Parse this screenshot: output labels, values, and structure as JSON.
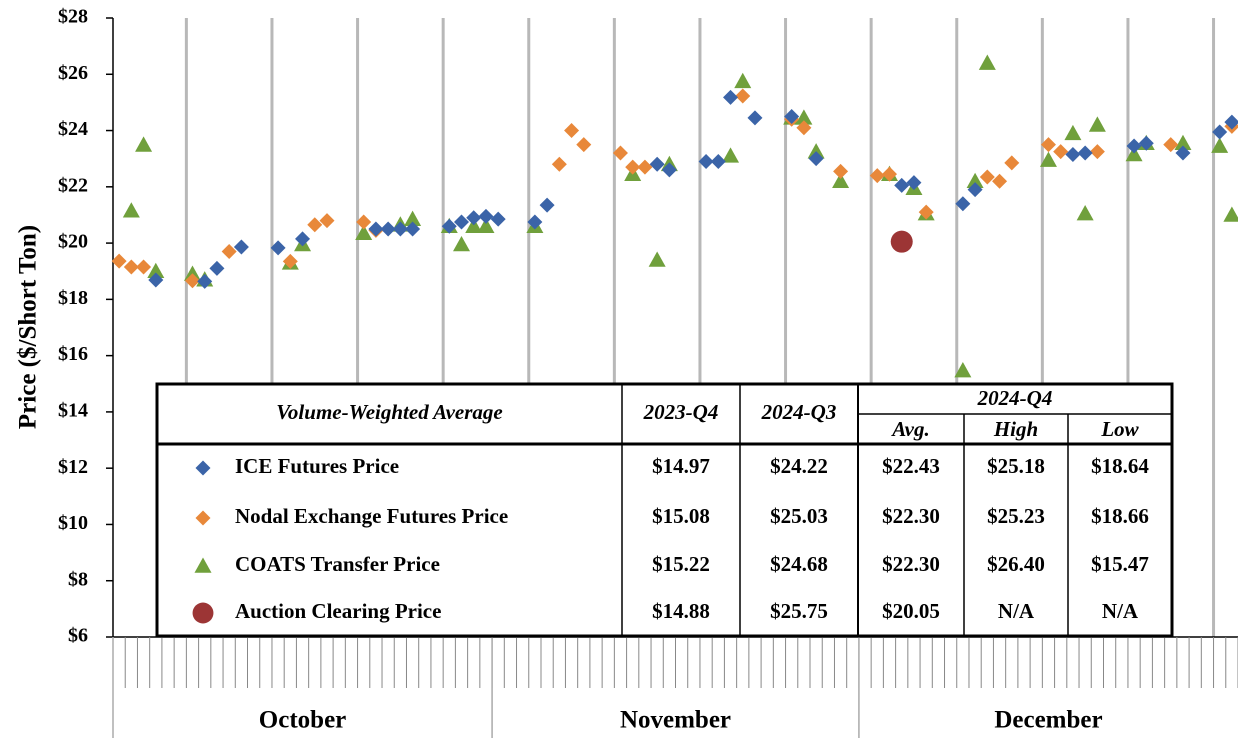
{
  "chart_data": {
    "type": "scatter",
    "ylabel": "Price ($/Short Ton)",
    "ylim": [
      6,
      28
    ],
    "yticks": [
      {
        "value": 6,
        "label": "$6"
      },
      {
        "value": 8,
        "label": "$8"
      },
      {
        "value": 10,
        "label": "$10"
      },
      {
        "value": 12,
        "label": "$12"
      },
      {
        "value": 14,
        "label": "$14"
      },
      {
        "value": 16,
        "label": "$16"
      },
      {
        "value": 18,
        "label": "$18"
      },
      {
        "value": 20,
        "label": "$20"
      },
      {
        "value": 22,
        "label": "$22"
      },
      {
        "value": 24,
        "label": "$24"
      },
      {
        "value": 26,
        "label": "$26"
      },
      {
        "value": 28,
        "label": "$28"
      }
    ],
    "xlim": [
      0.5,
      92.5
    ],
    "xgrid": [
      6.5,
      13.5,
      20.5,
      27.5,
      34.5,
      41.5,
      48.5,
      55.5,
      62.5,
      69.5,
      76.5,
      83.5,
      90.5
    ],
    "x_groups": [
      {
        "label": "October",
        "start": 0.5,
        "end": 31.5
      },
      {
        "label": "November",
        "start": 31.5,
        "end": 61.5
      },
      {
        "label": "December",
        "start": 61.5,
        "end": 92.5
      }
    ],
    "series": [
      {
        "name": "ICE Futures Price",
        "color": "#3b64a8",
        "marker": "diamond",
        "x": [
          4,
          8,
          9,
          11,
          14,
          16,
          22,
          23,
          24,
          25,
          28,
          29,
          30,
          31,
          32,
          35,
          36,
          45,
          46,
          49,
          50,
          51,
          53,
          56,
          58,
          65,
          66,
          70,
          71,
          79,
          80,
          84,
          85,
          88,
          91,
          92
        ],
        "values": [
          18.69,
          18.64,
          19.1,
          19.86,
          19.83,
          20.15,
          20.5,
          20.5,
          20.5,
          20.5,
          20.6,
          20.75,
          20.9,
          20.95,
          20.85,
          20.75,
          21.35,
          22.8,
          22.6,
          22.9,
          22.9,
          25.18,
          24.45,
          24.5,
          23.0,
          22.05,
          22.15,
          21.4,
          21.9,
          23.15,
          23.2,
          23.45,
          23.55,
          23.2,
          23.95,
          24.3
        ]
      },
      {
        "name": "Nodal Exchange Futures Price",
        "color": "#e8883a",
        "marker": "diamond",
        "x": [
          1,
          2,
          3,
          7,
          10,
          15,
          17,
          18,
          21,
          22,
          37,
          38,
          39,
          42,
          43,
          44,
          52,
          56,
          57,
          60,
          63,
          64,
          67,
          72,
          73,
          74,
          77,
          78,
          81,
          87,
          92
        ],
        "values": [
          19.36,
          19.15,
          19.15,
          18.66,
          19.7,
          19.35,
          20.65,
          20.8,
          20.75,
          20.45,
          22.8,
          24.0,
          23.5,
          23.2,
          22.7,
          22.7,
          25.23,
          24.4,
          24.1,
          22.55,
          22.4,
          22.45,
          21.1,
          22.35,
          22.2,
          22.85,
          23.5,
          23.25,
          23.25,
          23.5,
          24.15
        ]
      },
      {
        "name": "COATS Transfer Price",
        "color": "#70a03c",
        "marker": "triangle",
        "x": [
          2,
          3,
          4,
          7,
          8,
          15,
          16,
          21,
          24,
          25,
          28,
          29,
          30,
          31,
          35,
          43,
          45,
          46,
          51,
          52,
          56,
          57,
          58,
          60,
          64,
          66,
          67,
          70,
          71,
          72,
          77,
          79,
          80,
          81,
          84,
          85,
          88,
          91,
          92
        ],
        "values": [
          21.15,
          23.49,
          19.0,
          18.9,
          18.7,
          19.3,
          19.95,
          20.35,
          20.65,
          20.85,
          20.6,
          19.95,
          20.6,
          20.6,
          20.6,
          22.45,
          19.4,
          22.8,
          23.1,
          25.75,
          24.45,
          24.45,
          23.25,
          22.2,
          22.45,
          21.95,
          21.05,
          15.47,
          22.2,
          26.4,
          22.95,
          23.9,
          21.05,
          24.2,
          23.15,
          23.55,
          23.55,
          23.45,
          21.0
        ]
      },
      {
        "name": "Auction Clearing Price",
        "color": "#9c3535",
        "marker": "circle",
        "x": [
          65
        ],
        "values": [
          20.05
        ]
      }
    ],
    "table": {
      "title": "Volume-Weighted Average",
      "columns": [
        "2023-Q4",
        "2024-Q3"
      ],
      "group": "2024-Q4",
      "subcolumns": [
        "Avg.",
        "High",
        "Low"
      ],
      "rows": [
        [
          "$14.97",
          "$24.22",
          "$22.43",
          "$25.18",
          "$18.64"
        ],
        [
          "$15.08",
          "$25.03",
          "$22.30",
          "$25.23",
          "$18.66"
        ],
        [
          "$15.22",
          "$24.68",
          "$22.30",
          "$26.40",
          "$15.47"
        ],
        [
          "$14.88",
          "$25.75",
          "$20.05",
          "N/A",
          "N/A"
        ]
      ]
    }
  }
}
